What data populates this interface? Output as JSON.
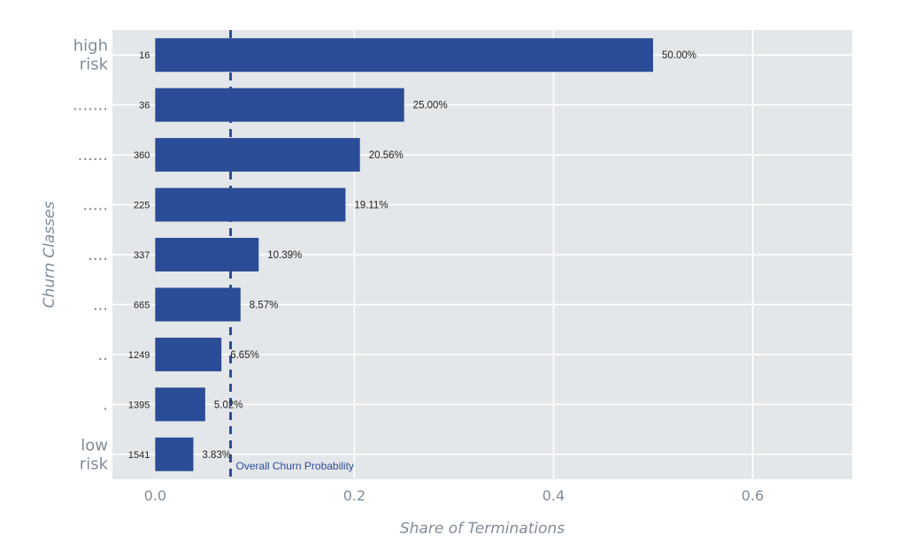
{
  "chart_data": {
    "type": "bar",
    "orientation": "horizontal",
    "categories": [
      [
        "high",
        "risk"
      ],
      [
        "......."
      ],
      [
        "......"
      ],
      [
        "....."
      ],
      [
        "...."
      ],
      [
        "..."
      ],
      [
        ".."
      ],
      [
        "."
      ],
      [
        "low",
        "risk"
      ]
    ],
    "counts": [
      "16",
      "36",
      "360",
      "225",
      "337",
      "665",
      "1249",
      "1395",
      "1541"
    ],
    "values": [
      0.5,
      0.25,
      0.2056,
      0.1911,
      0.1039,
      0.0857,
      0.0665,
      0.0502,
      0.0383
    ],
    "value_labels": [
      "50.00%",
      "25.00%",
      "20.56%",
      "19.11%",
      "10.39%",
      "8.57%",
      "6.65%",
      "5.02%",
      "3.83%"
    ],
    "xlabel": "Share of Terminations",
    "ylabel": "Churn Classes",
    "xlim": [
      -0.043,
      0.7
    ],
    "xticks": [
      0,
      0.2,
      0.4,
      0.6
    ],
    "xtick_labels": [
      "0.0",
      "0.2",
      "0.4",
      "0.6"
    ],
    "grid": true,
    "reference_line": {
      "value": 0.0757,
      "label": "Overall Churn Probability",
      "style": "dashed"
    },
    "colors": {
      "bar": "#2b4c96",
      "plot_background": "#e4e7ea",
      "grid": "#ffffff",
      "reference_line": "#2b4c96",
      "axis_text": "#7f8c99"
    }
  }
}
